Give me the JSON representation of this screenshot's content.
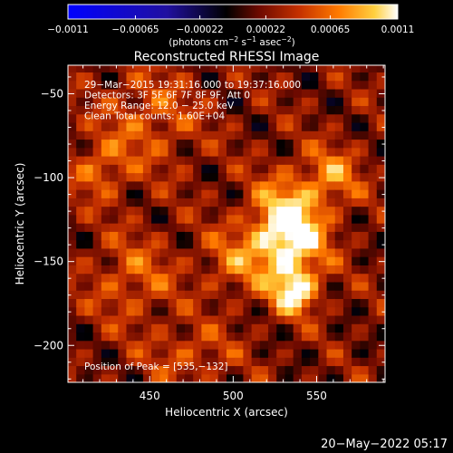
{
  "chart_data": {
    "type": "heatmap",
    "title": "Reconstructed RHESSI Image",
    "xlabel": "Heliocentric X (arcsec)",
    "ylabel": "Heliocentric Y (arcsec)",
    "xlim": [
      401,
      591
    ],
    "ylim": [
      -222,
      -33
    ],
    "x_ticks": [
      450,
      500,
      550
    ],
    "x_tick_labels": [
      "450",
      "500",
      "550"
    ],
    "y_ticks": [
      -50,
      -100,
      -150,
      -200
    ],
    "y_tick_labels": [
      "−50",
      "−100",
      "−150",
      "−200"
    ],
    "colorbar": {
      "min": -0.0011,
      "max": 0.0011,
      "tick_values": [
        -0.0011,
        -0.00065,
        -0.00022,
        0.00022,
        0.00065,
        0.0011
      ],
      "tick_labels": [
        "−0.0011",
        "−0.00065",
        "−0.00022",
        "0.00022",
        "0.00065",
        "0.0011"
      ],
      "unit_label": "(photons cm",
      "unit_sup1": "−2",
      "unit_mid": " s",
      "unit_sup2": "−1",
      "unit_mid2": " asec",
      "unit_sup3": "−2",
      "unit_end": ")"
    },
    "annotations": [
      "29−Mar−2015 19:31:16.000 to 19:37:16.000",
      "Detectors: 3F 5F 6F 7F 8F 9F, Att 0",
      "Energy Range: 12.0 − 25.0 keV",
      "Clean     Total counts: 1.60E+04"
    ],
    "peak_label": "Position of Peak = [535,−132]",
    "peak": {
      "x": 535,
      "y": -132
    },
    "sources": [
      {
        "x": 533,
        "y": -132,
        "sigma_x": 15,
        "sigma_y": 20,
        "value": 0.0011
      },
      {
        "x": 537,
        "y": -168,
        "sigma_x": 9,
        "sigma_y": 9,
        "value": 0.0008
      },
      {
        "x": 560,
        "y": -98,
        "sigma_x": 12,
        "sigma_y": 12,
        "value": 0.00045
      },
      {
        "x": 500,
        "y": -150,
        "sigma_x": 14,
        "sigma_y": 14,
        "value": 0.00035
      },
      {
        "x": 420,
        "y": -95,
        "sigma_x": 12,
        "sigma_y": 12,
        "value": 0.0004
      },
      {
        "x": 450,
        "y": -65,
        "sigma_x": 20,
        "sigma_y": 20,
        "value": 0.00035
      },
      {
        "x": 440,
        "y": -160,
        "sigma_x": 18,
        "sigma_y": 18,
        "value": 0.00035
      },
      {
        "x": 475,
        "y": -205,
        "sigma_x": 18,
        "sigma_y": 12,
        "value": 0.0003
      }
    ],
    "colormap_stops": [
      "#0000ff",
      "#2010a0",
      "#000000",
      "#6e0a00",
      "#c43000",
      "#ff7a00",
      "#ffd040",
      "#ffffff"
    ]
  },
  "timestamp": "20−May−2022 05:17"
}
